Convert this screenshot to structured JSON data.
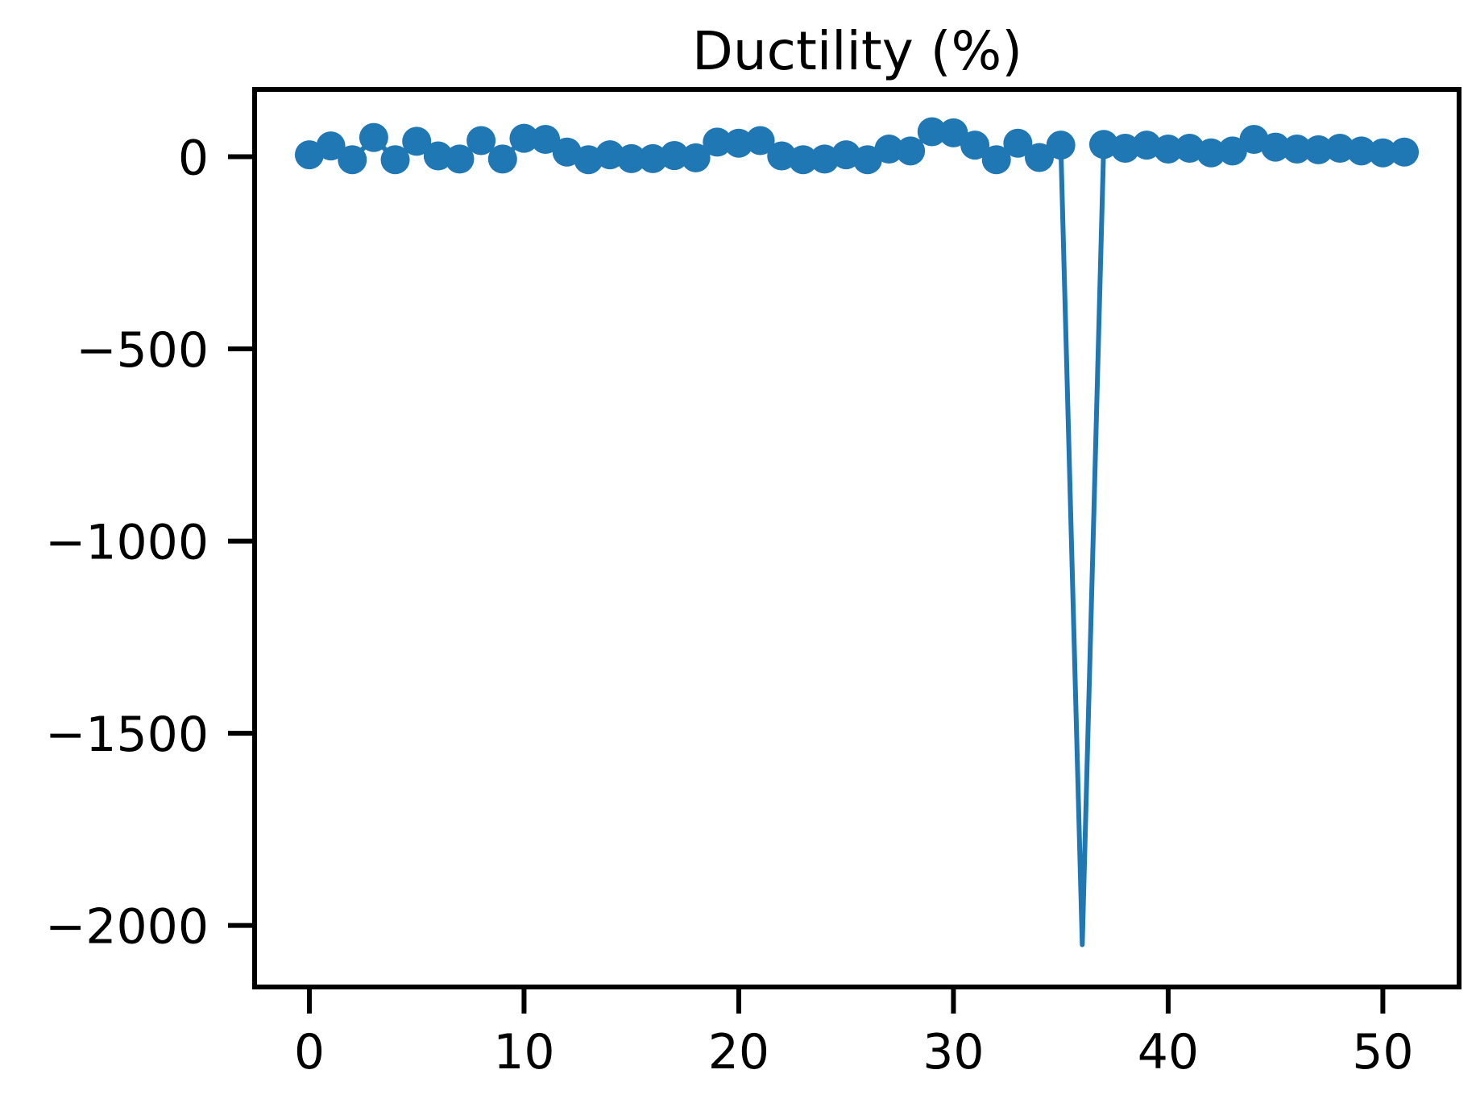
{
  "chart_data": {
    "type": "line",
    "title": "Ductility (%)",
    "xlabel": "",
    "ylabel": "",
    "xlim": [
      -2.55,
      53.55
    ],
    "ylim": [
      -2160,
      175
    ],
    "xticks": [
      0,
      10,
      20,
      30,
      40,
      50
    ],
    "yticks": [
      0,
      -500,
      -1000,
      -1500,
      -2000
    ],
    "xtick_labels": [
      "0",
      "10",
      "20",
      "30",
      "40",
      "50"
    ],
    "ytick_labels": [
      "0",
      "−500",
      "−1000",
      "−1500",
      "−2000"
    ],
    "grid": false,
    "legend": "none",
    "series": [
      {
        "color": "#1f77b4",
        "marker": "circle",
        "x": [
          0,
          1,
          2,
          3,
          4,
          5,
          6,
          7,
          8,
          9,
          10,
          11,
          12,
          13,
          14,
          15,
          16,
          17,
          18,
          19,
          20,
          21,
          22,
          23,
          24,
          25,
          26,
          27,
          28,
          29,
          30,
          31,
          32,
          33,
          34,
          35,
          36,
          37,
          38,
          39,
          40,
          41,
          42,
          43,
          44,
          45,
          46,
          47,
          48,
          49,
          50,
          51
        ],
        "y": [
          5,
          28,
          -8,
          50,
          -8,
          40,
          2,
          -6,
          42,
          -6,
          48,
          45,
          12,
          -8,
          5,
          -5,
          -5,
          3,
          -3,
          38,
          35,
          42,
          2,
          -8,
          -6,
          5,
          -8,
          20,
          15,
          65,
          62,
          30,
          -8,
          35,
          -2,
          30,
          -2050,
          32,
          22,
          30,
          20,
          22,
          10,
          15,
          45,
          25,
          20,
          18,
          22,
          15,
          10,
          12
        ]
      }
    ]
  }
}
